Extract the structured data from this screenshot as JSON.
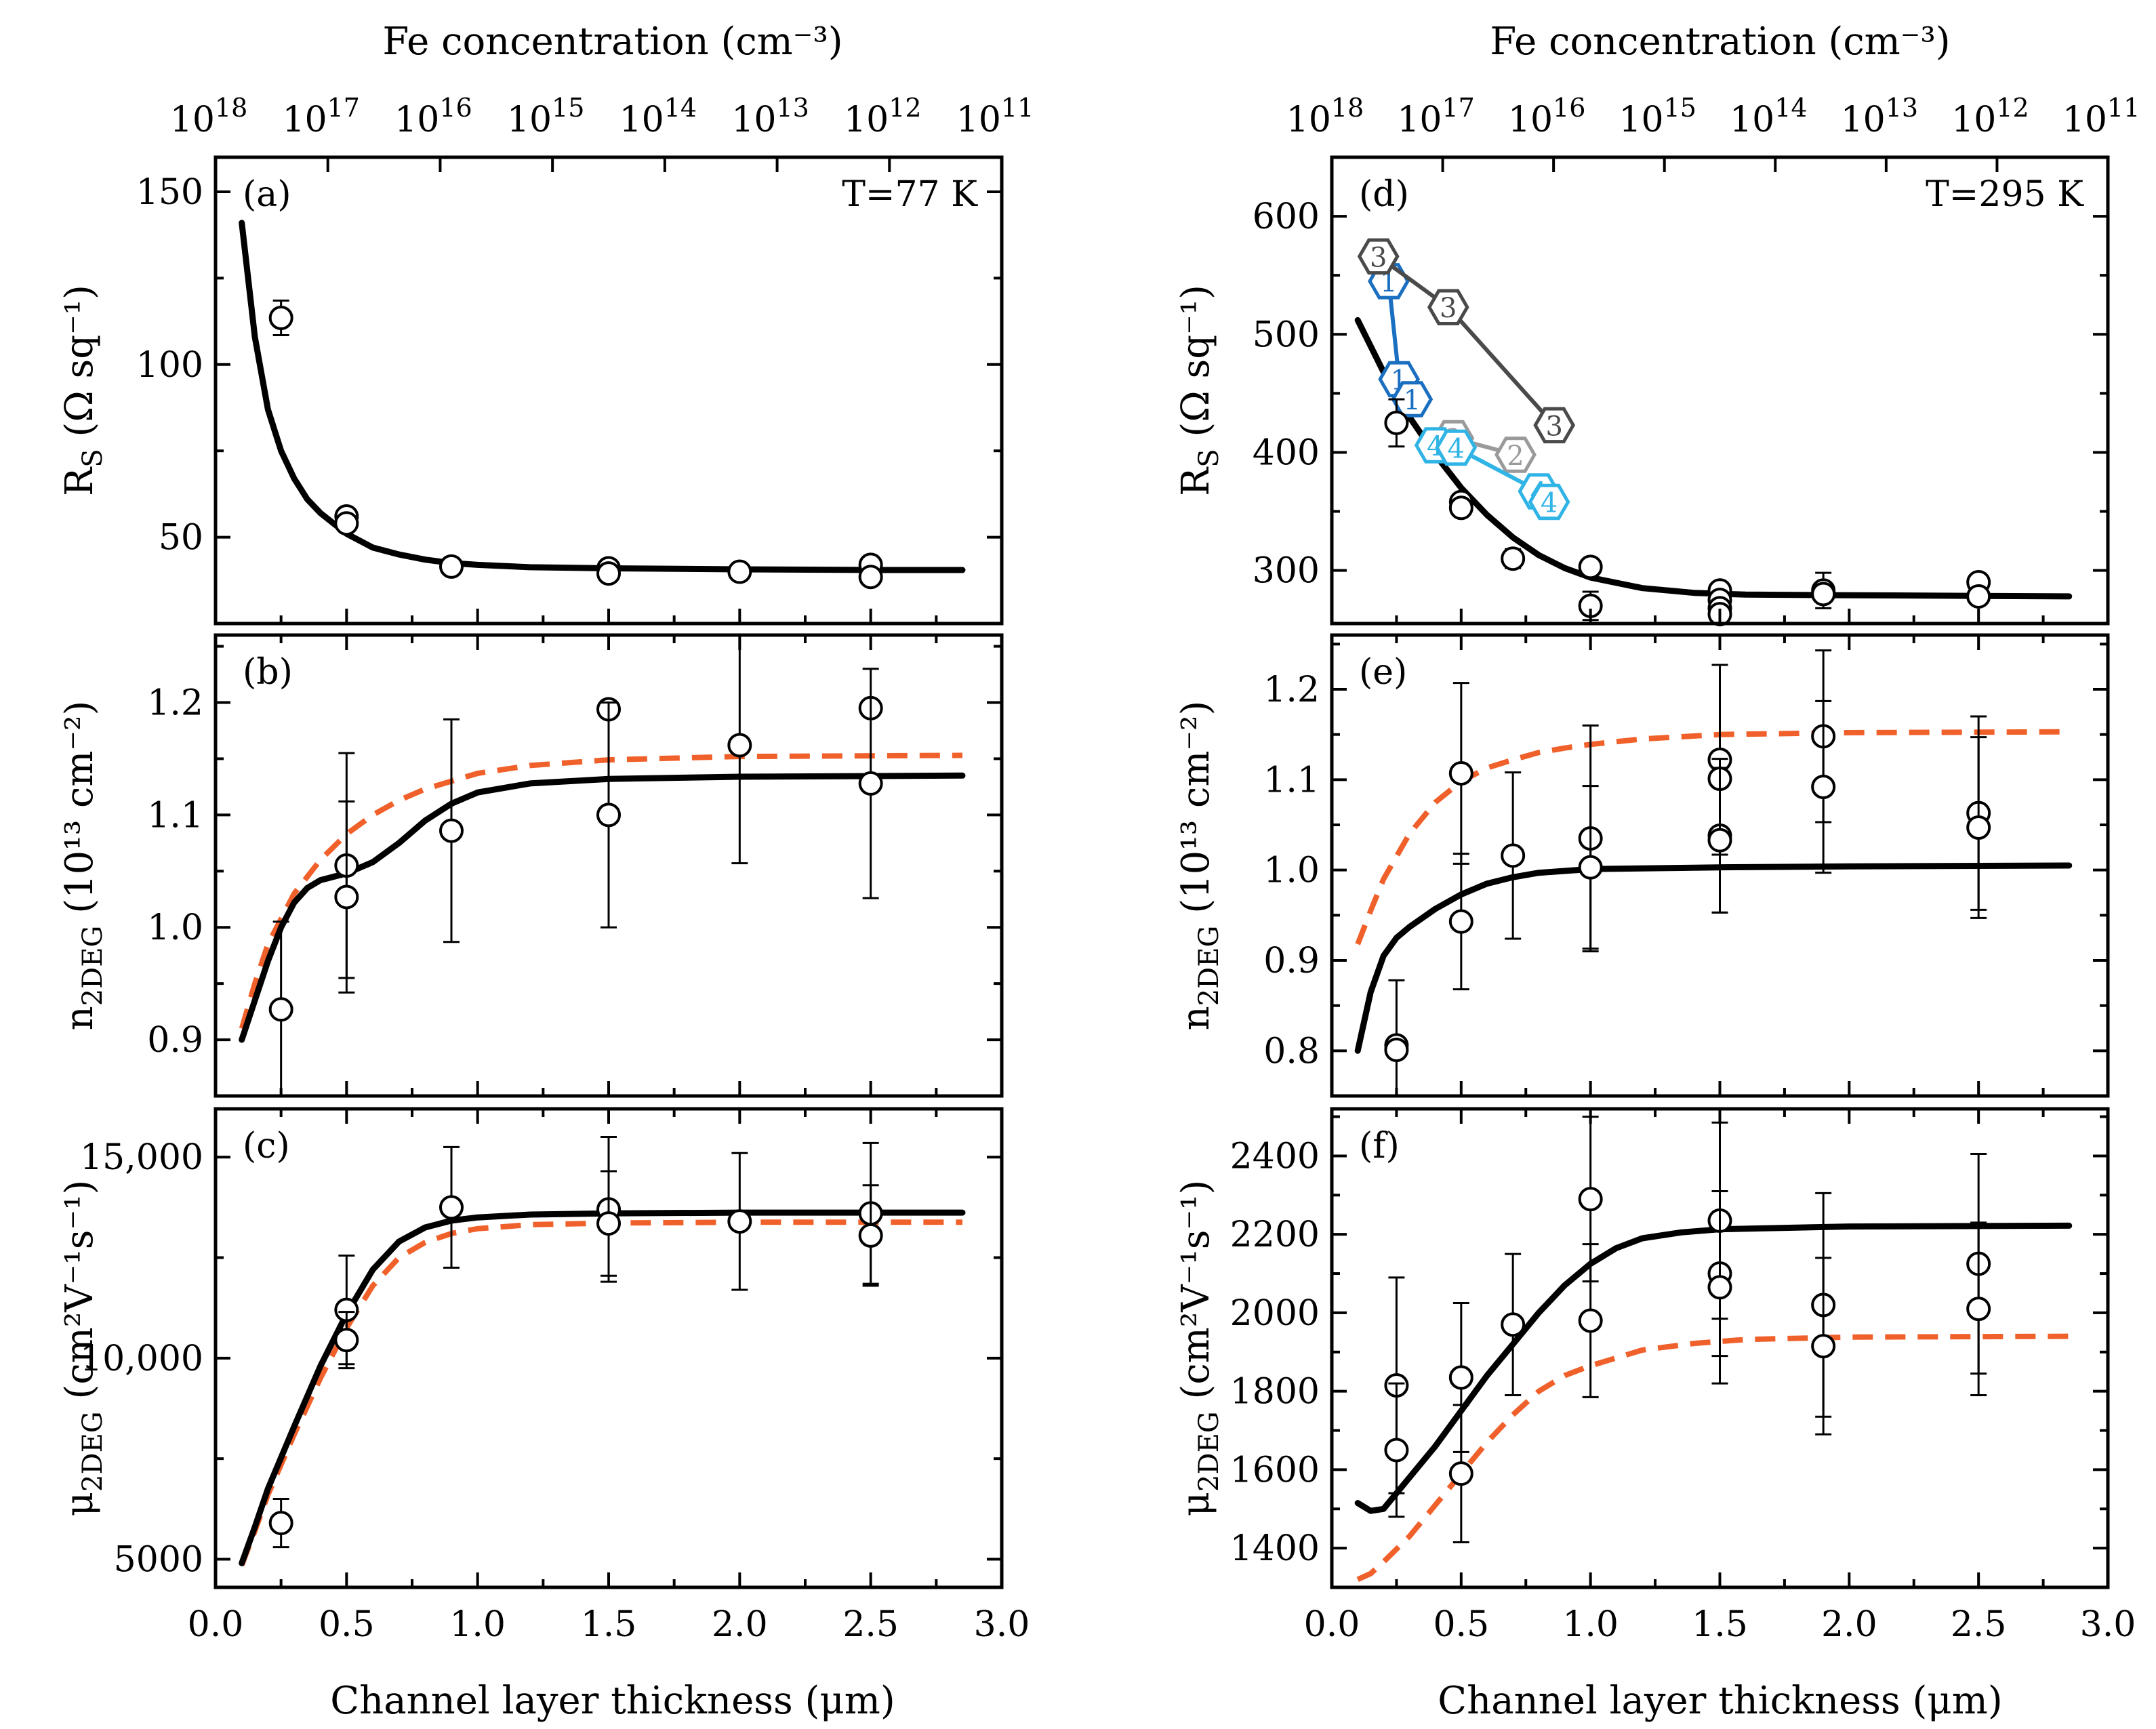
{
  "figure": {
    "top_axis_title": "Fe concentration (cm⁻³)",
    "top_axis_exponents": [
      "18",
      "17",
      "16",
      "15",
      "14",
      "13",
      "12",
      "11"
    ],
    "top_axis_base": "10",
    "bottom_axis_title": "Channel layer thickness (μm)",
    "x_ticks": [
      "0.0",
      "0.5",
      "1.0",
      "1.5",
      "2.0",
      "2.5",
      "3.0"
    ],
    "x_range": [
      0,
      3.0
    ],
    "colors": {
      "fit_solid": "#000000",
      "fit_dashed": "#f0602a",
      "sample1": "#1b6fc0",
      "sample2": "#9a9a9a",
      "sample3": "#4a4a4a",
      "sample4": "#30b4e6"
    }
  },
  "chart_data": [
    {
      "id": "a",
      "type": "scatter",
      "panel_label": "(a)",
      "temperature": "T=77 K",
      "ylabel_main": "R",
      "ylabel_sub": "S",
      "ylabel_unit": "(Ω sq⁻¹)",
      "ylim": [
        25,
        160
      ],
      "yticks": [
        50,
        100,
        150
      ],
      "ytick_labels": [
        "50",
        "100",
        "150"
      ],
      "points": [
        {
          "x": 0.25,
          "y": 113.5,
          "err": 5
        },
        {
          "x": 0.5,
          "y": 56,
          "err": 0
        },
        {
          "x": 0.5,
          "y": 54,
          "err": 0
        },
        {
          "x": 0.9,
          "y": 41.5,
          "err": 0
        },
        {
          "x": 1.5,
          "y": 41,
          "err": 0
        },
        {
          "x": 1.5,
          "y": 39.5,
          "err": 0
        },
        {
          "x": 2.0,
          "y": 40,
          "err": 0
        },
        {
          "x": 2.5,
          "y": 42,
          "err": 0
        },
        {
          "x": 2.5,
          "y": 38.5,
          "err": 0
        }
      ],
      "fit_solid": [
        [
          0.1,
          141
        ],
        [
          0.15,
          108
        ],
        [
          0.2,
          87
        ],
        [
          0.25,
          75
        ],
        [
          0.3,
          67
        ],
        [
          0.35,
          61
        ],
        [
          0.4,
          57
        ],
        [
          0.5,
          51
        ],
        [
          0.6,
          47
        ],
        [
          0.7,
          45
        ],
        [
          0.8,
          43.5
        ],
        [
          0.9,
          42.5
        ],
        [
          1.0,
          42
        ],
        [
          1.2,
          41.3
        ],
        [
          1.5,
          41
        ],
        [
          2.0,
          40.7
        ],
        [
          2.5,
          40.5
        ],
        [
          2.85,
          40.5
        ]
      ],
      "fit_dashed": []
    },
    {
      "id": "b",
      "type": "scatter",
      "panel_label": "(b)",
      "temperature": "",
      "ylabel_main": "n",
      "ylabel_sub": "2DEG",
      "ylabel_unit": "(10¹³ cm⁻²)",
      "ylim": [
        0.85,
        1.26
      ],
      "yticks": [
        0.9,
        1.0,
        1.1,
        1.2
      ],
      "ytick_labels": [
        "0.9",
        "1.0",
        "1.1",
        "1.2"
      ],
      "points": [
        {
          "x": 0.25,
          "y": 0.927,
          "err": 0.078
        },
        {
          "x": 0.5,
          "y": 1.055,
          "err": 0.1
        },
        {
          "x": 0.5,
          "y": 1.027,
          "err": 0.085
        },
        {
          "x": 0.9,
          "y": 1.086,
          "err": 0.099
        },
        {
          "x": 1.5,
          "y": 1.194,
          "err": 0.0
        },
        {
          "x": 1.5,
          "y": 1.1,
          "err": 0.1
        },
        {
          "x": 2.0,
          "y": 1.162,
          "err": 0.105
        },
        {
          "x": 2.5,
          "y": 1.195,
          "err": 0.0
        },
        {
          "x": 2.5,
          "y": 1.128,
          "err": 0.102
        }
      ],
      "fit_solid": [
        [
          0.1,
          0.9
        ],
        [
          0.15,
          0.935
        ],
        [
          0.2,
          0.97
        ],
        [
          0.25,
          1.0
        ],
        [
          0.3,
          1.022
        ],
        [
          0.35,
          1.035
        ],
        [
          0.4,
          1.042
        ],
        [
          0.5,
          1.048
        ],
        [
          0.6,
          1.058
        ],
        [
          0.7,
          1.075
        ],
        [
          0.8,
          1.095
        ],
        [
          0.9,
          1.11
        ],
        [
          1.0,
          1.12
        ],
        [
          1.2,
          1.128
        ],
        [
          1.5,
          1.132
        ],
        [
          2.0,
          1.134
        ],
        [
          2.85,
          1.135
        ]
      ],
      "fit_dashed": [
        [
          0.1,
          0.91
        ],
        [
          0.15,
          0.95
        ],
        [
          0.2,
          0.985
        ],
        [
          0.3,
          1.03
        ],
        [
          0.4,
          1.06
        ],
        [
          0.5,
          1.083
        ],
        [
          0.6,
          1.1
        ],
        [
          0.7,
          1.113
        ],
        [
          0.8,
          1.123
        ],
        [
          0.9,
          1.13
        ],
        [
          1.0,
          1.137
        ],
        [
          1.2,
          1.144
        ],
        [
          1.5,
          1.149
        ],
        [
          2.0,
          1.152
        ],
        [
          2.85,
          1.153
        ]
      ]
    },
    {
      "id": "c",
      "type": "scatter",
      "panel_label": "(c)",
      "temperature": "",
      "ylabel_main": "μ",
      "ylabel_sub": "2DEG",
      "ylabel_unit": "(cm²V⁻¹s⁻¹)",
      "ylim": [
        4300,
        16200
      ],
      "yticks": [
        5000,
        10000,
        15000
      ],
      "ytick_labels": [
        "5000",
        "10,000",
        "15,000"
      ],
      "points": [
        {
          "x": 0.25,
          "y": 5900,
          "err": 600
        },
        {
          "x": 0.5,
          "y": 11200,
          "err": 1350
        },
        {
          "x": 0.5,
          "y": 10450,
          "err": 700
        },
        {
          "x": 0.9,
          "y": 13750,
          "err": 1500
        },
        {
          "x": 1.5,
          "y": 13700,
          "err": 1800
        },
        {
          "x": 1.5,
          "y": 13350,
          "err": 1300
        },
        {
          "x": 2.0,
          "y": 13400,
          "err": 1700
        },
        {
          "x": 2.5,
          "y": 13600,
          "err": 1750
        },
        {
          "x": 2.5,
          "y": 13050,
          "err": 1250
        }
      ],
      "fit_solid": [
        [
          0.1,
          4900
        ],
        [
          0.15,
          5800
        ],
        [
          0.2,
          6750
        ],
        [
          0.3,
          8300
        ],
        [
          0.4,
          9800
        ],
        [
          0.5,
          11100
        ],
        [
          0.6,
          12200
        ],
        [
          0.7,
          12900
        ],
        [
          0.8,
          13250
        ],
        [
          0.9,
          13420
        ],
        [
          1.0,
          13500
        ],
        [
          1.2,
          13570
        ],
        [
          1.5,
          13600
        ],
        [
          2.0,
          13620
        ],
        [
          2.85,
          13620
        ]
      ],
      "fit_dashed": [
        [
          0.1,
          4850
        ],
        [
          0.15,
          5700
        ],
        [
          0.2,
          6600
        ],
        [
          0.3,
          8100
        ],
        [
          0.4,
          9500
        ],
        [
          0.5,
          10750
        ],
        [
          0.6,
          11800
        ],
        [
          0.7,
          12500
        ],
        [
          0.8,
          12880
        ],
        [
          0.9,
          13100
        ],
        [
          1.0,
          13220
        ],
        [
          1.2,
          13320
        ],
        [
          1.5,
          13360
        ],
        [
          2.0,
          13380
        ],
        [
          2.85,
          13380
        ]
      ]
    },
    {
      "id": "d",
      "type": "scatter",
      "panel_label": "(d)",
      "temperature": "T=295 K",
      "ylabel_main": "R",
      "ylabel_sub": "S",
      "ylabel_unit": "(Ω sq⁻¹)",
      "ylim": [
        255,
        650
      ],
      "yticks": [
        300,
        400,
        500,
        600
      ],
      "ytick_labels": [
        "300",
        "400",
        "500",
        "600"
      ],
      "points": [
        {
          "x": 0.25,
          "y": 425,
          "err": 20
        },
        {
          "x": 0.5,
          "y": 358,
          "err": 0
        },
        {
          "x": 0.5,
          "y": 353,
          "err": 0
        },
        {
          "x": 0.7,
          "y": 310,
          "err": 8
        },
        {
          "x": 1.0,
          "y": 303,
          "err": 0
        },
        {
          "x": 1.0,
          "y": 270,
          "err": 12
        },
        {
          "x": 1.5,
          "y": 283,
          "err": 0
        },
        {
          "x": 1.5,
          "y": 275,
          "err": 0
        },
        {
          "x": 1.5,
          "y": 268,
          "err": 0
        },
        {
          "x": 1.5,
          "y": 263,
          "err": 0
        },
        {
          "x": 1.9,
          "y": 283,
          "err": 15
        },
        {
          "x": 1.9,
          "y": 280,
          "err": 0
        },
        {
          "x": 2.5,
          "y": 290,
          "err": 0
        },
        {
          "x": 2.5,
          "y": 278,
          "err": 0
        }
      ],
      "fit_solid": [
        [
          0.1,
          512
        ],
        [
          0.15,
          490
        ],
        [
          0.2,
          468
        ],
        [
          0.3,
          430
        ],
        [
          0.4,
          398
        ],
        [
          0.5,
          370
        ],
        [
          0.6,
          347
        ],
        [
          0.7,
          328
        ],
        [
          0.8,
          313
        ],
        [
          0.9,
          302
        ],
        [
          1.0,
          294
        ],
        [
          1.2,
          285
        ],
        [
          1.4,
          281
        ],
        [
          1.6,
          279.5
        ],
        [
          2.0,
          279
        ],
        [
          2.85,
          278
        ]
      ],
      "fit_dashed": [],
      "samples": [
        {
          "label": "1",
          "color": "#1b6fc0",
          "points": [
            [
              0.22,
              545
            ],
            [
              0.26,
              462
            ],
            [
              0.31,
              445
            ]
          ]
        },
        {
          "label": "2",
          "color": "#9a9a9a",
          "points": [
            [
              0.47,
              412
            ],
            [
              0.71,
              398
            ]
          ]
        },
        {
          "label": "3",
          "color": "#4a4a4a",
          "points": [
            [
              0.18,
              566
            ],
            [
              0.45,
              523
            ],
            [
              0.86,
              423
            ]
          ]
        },
        {
          "label": "4",
          "color": "#30b4e6",
          "points": [
            [
              0.4,
              406
            ],
            [
              0.48,
              404
            ],
            [
              0.8,
              367
            ],
            [
              0.84,
              358
            ]
          ]
        }
      ]
    },
    {
      "id": "e",
      "type": "scatter",
      "panel_label": "(e)",
      "temperature": "",
      "ylabel_main": "n",
      "ylabel_sub": "2DEG",
      "ylabel_unit": "(10¹³ cm⁻²)",
      "ylim": [
        0.75,
        1.26
      ],
      "yticks": [
        0.8,
        0.9,
        1.0,
        1.1,
        1.2
      ],
      "ytick_labels": [
        "0.8",
        "0.9",
        "1.0",
        "1.1",
        "1.2"
      ],
      "points": [
        {
          "x": 0.25,
          "y": 0.806,
          "err": 0.072
        },
        {
          "x": 0.25,
          "y": 0.801,
          "err": 0.0
        },
        {
          "x": 0.5,
          "y": 1.107,
          "err": 0.1
        },
        {
          "x": 0.5,
          "y": 0.943,
          "err": 0.075
        },
        {
          "x": 0.7,
          "y": 1.016,
          "err": 0.092
        },
        {
          "x": 1.0,
          "y": 1.035,
          "err": 0.125
        },
        {
          "x": 1.0,
          "y": 1.003,
          "err": 0.09
        },
        {
          "x": 1.5,
          "y": 1.122,
          "err": 0.105
        },
        {
          "x": 1.5,
          "y": 1.101,
          "err": 0.0
        },
        {
          "x": 1.5,
          "y": 1.038,
          "err": 0.085
        },
        {
          "x": 1.5,
          "y": 1.033,
          "err": 0.08
        },
        {
          "x": 1.9,
          "y": 1.148,
          "err": 0.095
        },
        {
          "x": 1.9,
          "y": 1.092,
          "err": 0.095
        },
        {
          "x": 2.5,
          "y": 1.063,
          "err": 0.107
        },
        {
          "x": 2.5,
          "y": 1.047,
          "err": 0.1
        }
      ],
      "fit_solid": [
        [
          0.1,
          0.8
        ],
        [
          0.15,
          0.865
        ],
        [
          0.2,
          0.905
        ],
        [
          0.25,
          0.925
        ],
        [
          0.3,
          0.937
        ],
        [
          0.4,
          0.957
        ],
        [
          0.5,
          0.973
        ],
        [
          0.6,
          0.985
        ],
        [
          0.7,
          0.992
        ],
        [
          0.8,
          0.997
        ],
        [
          0.9,
          0.999
        ],
        [
          1.0,
          1.001
        ],
        [
          1.5,
          1.003
        ],
        [
          2.0,
          1.004
        ],
        [
          2.85,
          1.005
        ]
      ],
      "fit_dashed": [
        [
          0.1,
          0.918
        ],
        [
          0.15,
          0.955
        ],
        [
          0.2,
          0.99
        ],
        [
          0.3,
          1.04
        ],
        [
          0.4,
          1.075
        ],
        [
          0.5,
          1.098
        ],
        [
          0.6,
          1.113
        ],
        [
          0.7,
          1.122
        ],
        [
          0.8,
          1.13
        ],
        [
          0.9,
          1.135
        ],
        [
          1.0,
          1.139
        ],
        [
          1.2,
          1.145
        ],
        [
          1.5,
          1.15
        ],
        [
          2.0,
          1.152
        ],
        [
          2.85,
          1.153
        ]
      ]
    },
    {
      "id": "f",
      "type": "scatter",
      "panel_label": "(f)",
      "temperature": "",
      "ylabel_main": "μ",
      "ylabel_sub": "2DEG",
      "ylabel_unit": "(cm²V⁻¹s⁻¹)",
      "ylim": [
        1300,
        2520
      ],
      "yticks": [
        1400,
        1600,
        1800,
        2000,
        2200,
        2400
      ],
      "ytick_labels": [
        "1400",
        "1600",
        "1800",
        "2000",
        "2200",
        "2400"
      ],
      "points": [
        {
          "x": 0.25,
          "y": 1815,
          "err": 275
        },
        {
          "x": 0.25,
          "y": 1650,
          "err": 170
        },
        {
          "x": 0.5,
          "y": 1835,
          "err": 190
        },
        {
          "x": 0.5,
          "y": 1590,
          "err": 175
        },
        {
          "x": 0.7,
          "y": 1970,
          "err": 180
        },
        {
          "x": 1.0,
          "y": 2290,
          "err": 210
        },
        {
          "x": 1.0,
          "y": 1980,
          "err": 195
        },
        {
          "x": 1.5,
          "y": 2235,
          "err": 250
        },
        {
          "x": 1.5,
          "y": 2100,
          "err": 210
        },
        {
          "x": 1.5,
          "y": 2065,
          "err": 245
        },
        {
          "x": 1.9,
          "y": 2020,
          "err": 285
        },
        {
          "x": 1.9,
          "y": 1915,
          "err": 225
        },
        {
          "x": 2.5,
          "y": 2125,
          "err": 280
        },
        {
          "x": 2.5,
          "y": 2010,
          "err": 220
        }
      ],
      "fit_solid": [
        [
          0.1,
          1515
        ],
        [
          0.15,
          1495
        ],
        [
          0.2,
          1500
        ],
        [
          0.3,
          1580
        ],
        [
          0.4,
          1660
        ],
        [
          0.5,
          1750
        ],
        [
          0.6,
          1840
        ],
        [
          0.7,
          1920
        ],
        [
          0.8,
          2000
        ],
        [
          0.9,
          2070
        ],
        [
          1.0,
          2125
        ],
        [
          1.1,
          2165
        ],
        [
          1.2,
          2190
        ],
        [
          1.35,
          2205
        ],
        [
          1.5,
          2213
        ],
        [
          2.0,
          2220
        ],
        [
          2.85,
          2222
        ]
      ],
      "fit_dashed": [
        [
          0.1,
          1320
        ],
        [
          0.15,
          1335
        ],
        [
          0.2,
          1365
        ],
        [
          0.3,
          1430
        ],
        [
          0.4,
          1510
        ],
        [
          0.5,
          1590
        ],
        [
          0.6,
          1670
        ],
        [
          0.7,
          1740
        ],
        [
          0.8,
          1800
        ],
        [
          0.9,
          1840
        ],
        [
          1.0,
          1865
        ],
        [
          1.2,
          1905
        ],
        [
          1.4,
          1922
        ],
        [
          1.6,
          1932
        ],
        [
          2.0,
          1938
        ],
        [
          2.85,
          1940
        ]
      ]
    }
  ]
}
